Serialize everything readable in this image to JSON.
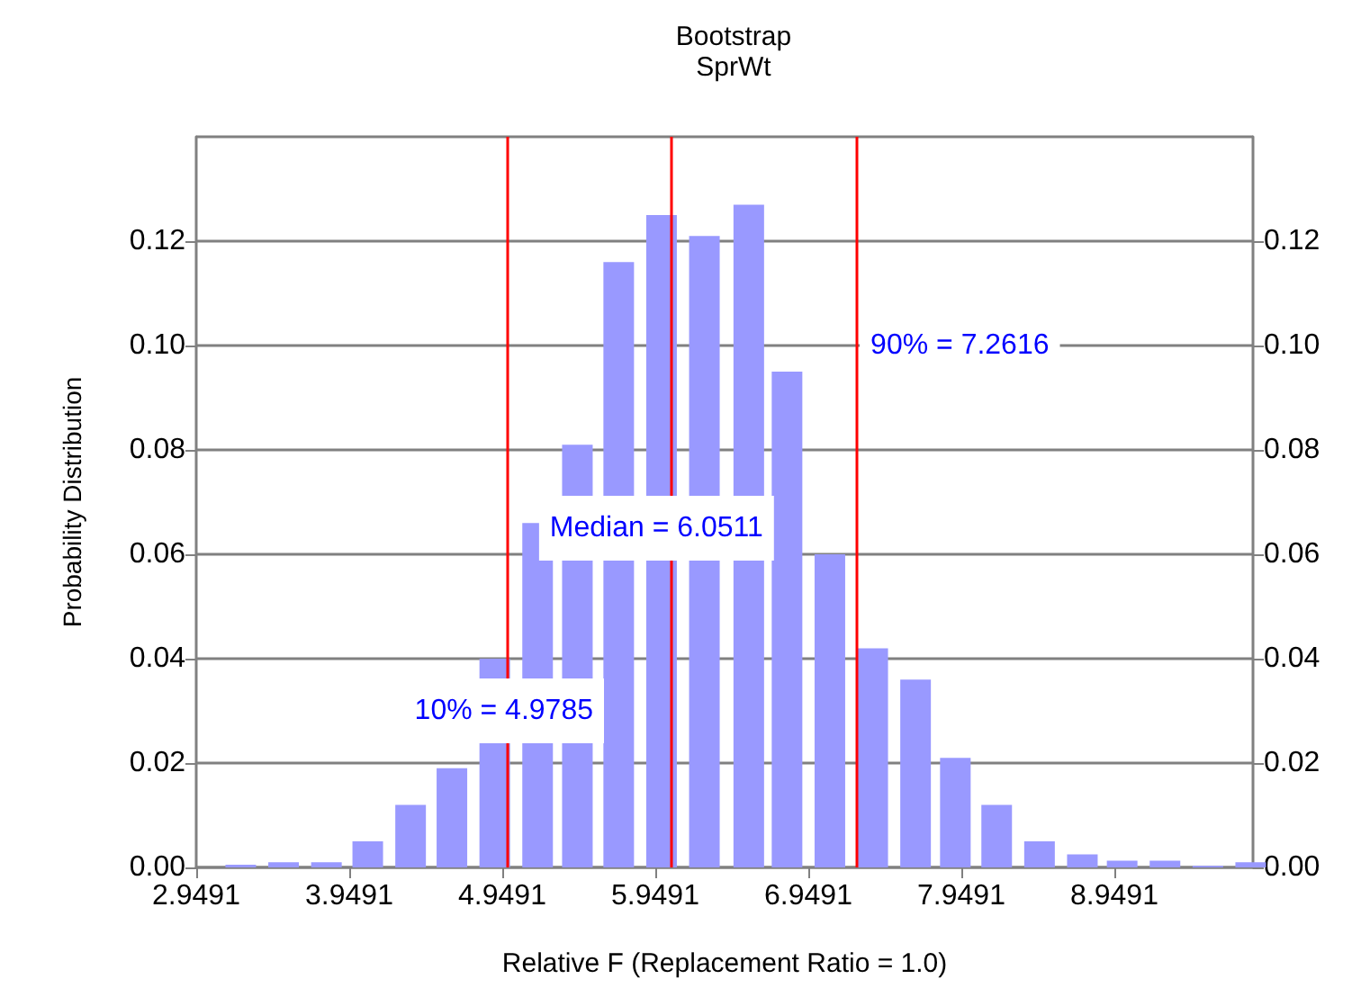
{
  "chart_data": {
    "type": "bar",
    "title": "Bootstrap",
    "subtitle": "SprWt",
    "xlabel": "Relative F (Replacement Ratio = 1.0)",
    "ylabel": "Probability Distribution",
    "x": [
      3.24,
      3.52,
      3.8,
      4.07,
      4.35,
      4.62,
      4.9,
      5.18,
      5.44,
      5.71,
      5.99,
      6.27,
      6.56,
      6.81,
      7.09,
      7.37,
      7.65,
      7.91,
      8.18,
      8.46,
      8.74,
      9.0,
      9.28,
      9.56,
      9.84
    ],
    "values": [
      0.0005,
      0.001,
      0.001,
      0.005,
      0.012,
      0.019,
      0.04,
      0.066,
      0.081,
      0.116,
      0.125,
      0.121,
      0.127,
      0.095,
      0.06,
      0.042,
      0.036,
      0.021,
      0.012,
      0.005,
      0.0025,
      0.0013,
      0.0013,
      0.0003,
      0.001
    ],
    "color": "#9999ff",
    "xlim": [
      2.9491,
      9.855
    ],
    "xticks": [
      2.9491,
      3.9491,
      4.9491,
      5.9491,
      6.9491,
      7.9491,
      8.9491
    ],
    "ylim": [
      0,
      0.14
    ],
    "yticks": [
      {
        "value": 0,
        "label": "0.00"
      },
      0.02,
      0.04,
      0.06,
      0.08,
      {
        "value": 0.1,
        "label": "0.10"
      },
      0.12
    ],
    "y2lim": [
      0,
      0.14
    ],
    "y2ticks": [
      {
        "value": 0,
        "label": "0.00"
      },
      0.02,
      0.04,
      0.06,
      0.08,
      {
        "value": 0.1,
        "label": "0.10"
      },
      0.12
    ],
    "grid": "y",
    "ref_lines": [
      {
        "axis": "x",
        "value": 4.9785,
        "label": "10% = 4.9785",
        "color": "#ff0000"
      },
      {
        "axis": "x",
        "value": 6.0511,
        "label": "Median = 6.0511",
        "color": "#ff0000"
      },
      {
        "axis": "x",
        "value": 7.2616,
        "label": "90% = 7.2616",
        "color": "#ff0000"
      }
    ]
  }
}
